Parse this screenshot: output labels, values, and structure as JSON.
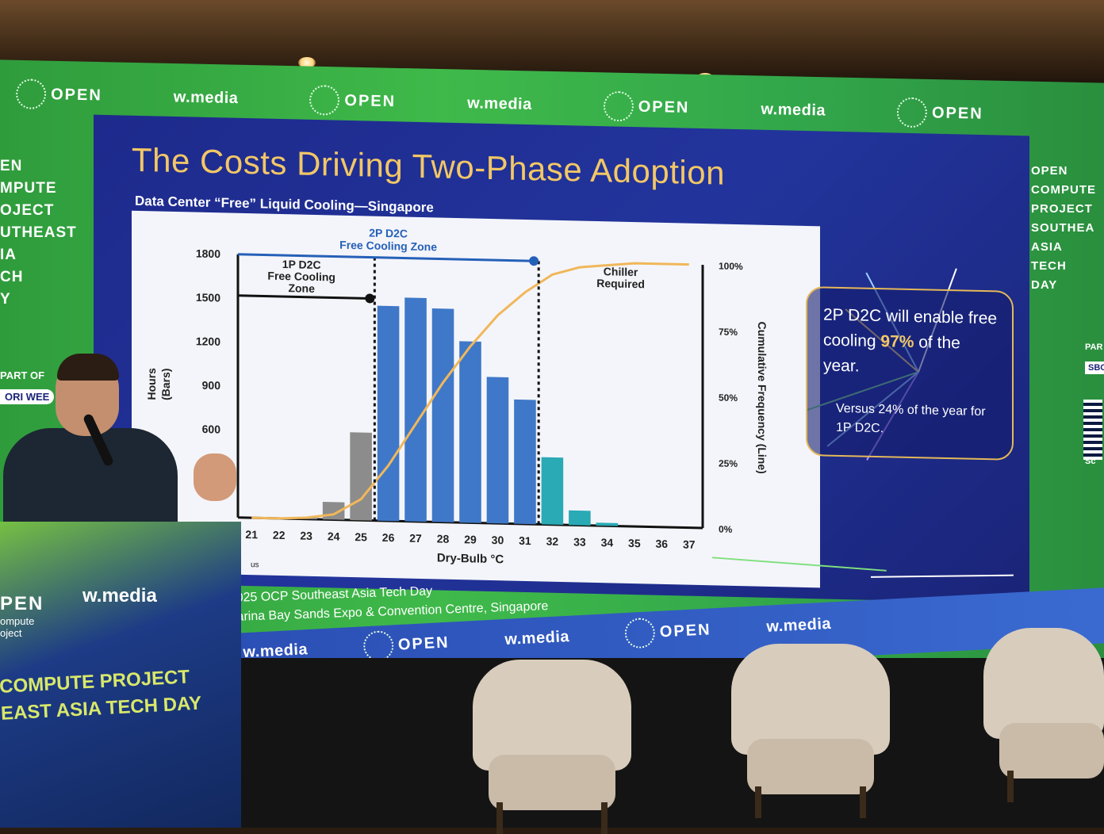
{
  "slide": {
    "title": "The Costs Driving Two-Phase Adoption",
    "chart_subtitle": "Data Center “Free” Liquid Cooling—Singapore",
    "callout_main_before": "2P D2C will enable free cooling ",
    "callout_main_highlight": "97%",
    "callout_main_after": " of the year.",
    "callout_sub": "Versus 24% of the year for 1P D2C."
  },
  "chart_data": {
    "type": "bar",
    "title": "Data Center “Free” Liquid Cooling—Singapore",
    "xlabel": "Dry-Bulb °C",
    "ylabel": "Hours (Bars)",
    "y2label": "Cumulative Frequency (Line)",
    "categories": [
      "21",
      "22",
      "23",
      "24",
      "25",
      "26",
      "27",
      "28",
      "29",
      "30",
      "31",
      "32",
      "33",
      "34",
      "35",
      "36",
      "37"
    ],
    "values": [
      0,
      0,
      10,
      120,
      600,
      1470,
      1530,
      1460,
      1240,
      1000,
      850,
      460,
      100,
      20,
      0,
      0,
      0
    ],
    "bar_colors": [
      "#3f78c8",
      "#3f78c8",
      "#8c8c8c",
      "#8c8c8c",
      "#8c8c8c",
      "#3f78c8",
      "#3f78c8",
      "#3f78c8",
      "#3f78c8",
      "#3f78c8",
      "#3f78c8",
      "#2aaab5",
      "#2aaab5",
      "#2aaab5",
      "#2aaab5",
      "#2aaab5",
      "#2aaab5"
    ],
    "cumulative": [
      0,
      0,
      0.5,
      2,
      8,
      21,
      37,
      53,
      67,
      79,
      88,
      95,
      98,
      99,
      100,
      100,
      100
    ],
    "ylim": [
      0,
      1800
    ],
    "y_ticks": [
      "600",
      "900",
      "1200",
      "1500",
      "1800"
    ],
    "y2_ticks": [
      "0%",
      "25%",
      "50%",
      "75%",
      "100%"
    ],
    "line_color": "#f0b75a",
    "annotations": {
      "zone_2p_line1": "2P D2C",
      "zone_2p_line2": "Free Cooling Zone",
      "zone_1p_line1": "1P D2C",
      "zone_1p_line2": "Free Cooling",
      "zone_1p_line3": "Zone",
      "chiller_line1": "Chiller",
      "chiller_line2": "Required"
    },
    "footer": "us"
  },
  "banner": {
    "open_label": "OPEN",
    "open_sub1": "Compute",
    "open_sub2": "Project",
    "wmedia_label": "w.media"
  },
  "left_side_text": [
    "EN",
    "MPUTE",
    "OJECT",
    "UTHEAST",
    "IA",
    "CH",
    "Y"
  ],
  "right_side_text": [
    "OPEN",
    "COMPUTE",
    "PROJECT",
    "SOUTHEA",
    "ASIA",
    "TECH",
    "DAY"
  ],
  "left_small": [
    "PART OF",
    "ORI WEE"
  ],
  "right_small": [
    "PAR",
    "SBOR",
    "Sc"
  ],
  "caption": {
    "line1": "025 OCP Southeast Asia Tech Day",
    "line2": "arina Bay Sands Expo & Convention Centre, Singapore"
  },
  "podium": {
    "open_label": "PEN",
    "open_sub1": "ompute",
    "open_sub2": "oject",
    "wmedia_label": "w.media",
    "heading_line1": "COMPUTE PROJECT",
    "heading_line2": "EAST ASIA TECH DAY"
  },
  "colors": {
    "title": "#f2c766",
    "slide_bg": "#1f2d90",
    "wall_green": "#3fb94a",
    "bar_blue": "#3f78c8",
    "bar_grey": "#8c8c8c",
    "bar_teal": "#2aaab5"
  }
}
